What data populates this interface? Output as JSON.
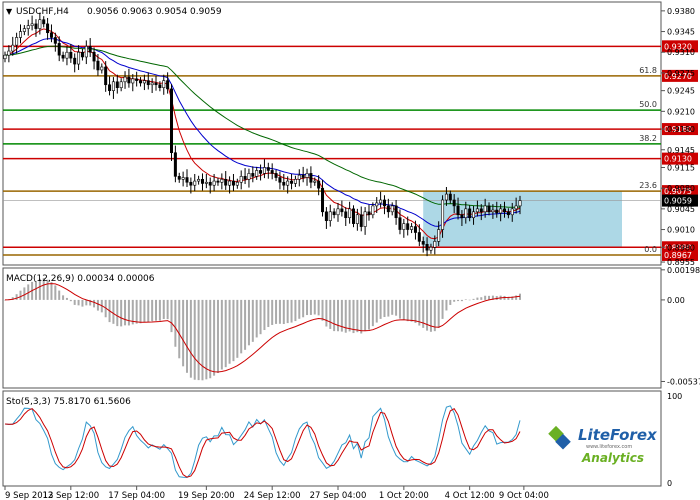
{
  "chart_data": [
    {
      "type": "candlestick",
      "symbol_label": "USDCHF,H4",
      "ohlc_label": "0.9056 0.9063 0.9054 0.9059",
      "ylim": [
        0.895,
        0.9395
      ],
      "yticks": [
        "0.9380",
        "0.9345",
        "0.9310",
        "0.9275",
        "0.9245",
        "0.9210",
        "0.9180",
        "0.9145",
        "0.9115",
        "0.9080",
        "0.9045",
        "0.9010",
        "0.8980",
        "0.8955"
      ],
      "xtick_labels": [
        "9 Sep 2013",
        "12 Sep 12:00",
        "17 Sep 04:00",
        "19 Sep 20:00",
        "24 Sep 12:00",
        "27 Sep 04:00",
        "1 Oct 20:00",
        "4 Oct 12:00",
        "9 Oct 04:00"
      ],
      "n_bars": 134,
      "close": [
        0.9305,
        0.9312,
        0.9322,
        0.9335,
        0.9345,
        0.935,
        0.9355,
        0.9358,
        0.935,
        0.9365,
        0.9358,
        0.9343,
        0.9335,
        0.9325,
        0.9305,
        0.93,
        0.931,
        0.93,
        0.929,
        0.931,
        0.9302,
        0.932,
        0.931,
        0.9295,
        0.928,
        0.9285,
        0.9255,
        0.9245,
        0.926,
        0.925,
        0.926,
        0.9268,
        0.9258,
        0.9265,
        0.9262,
        0.9258,
        0.9262,
        0.9255,
        0.9258,
        0.9255,
        0.925,
        0.9262,
        0.9248,
        0.914,
        0.91,
        0.9095,
        0.9098,
        0.909,
        0.9085,
        0.9092,
        0.9095,
        0.9088,
        0.909,
        0.9085,
        0.9092,
        0.909,
        0.9095,
        0.9085,
        0.9092,
        0.9085,
        0.909,
        0.91,
        0.9095,
        0.9105,
        0.91,
        0.911,
        0.9105,
        0.9115,
        0.911,
        0.9105,
        0.9098,
        0.909,
        0.9085,
        0.9092,
        0.9088,
        0.9095,
        0.9102,
        0.9098,
        0.9105,
        0.909,
        0.9092,
        0.908,
        0.904,
        0.9025,
        0.904,
        0.9035,
        0.9045,
        0.904,
        0.903,
        0.9045,
        0.902,
        0.9035,
        0.9015,
        0.904,
        0.9035,
        0.905,
        0.9055,
        0.906,
        0.905,
        0.904,
        0.905,
        0.903,
        0.901,
        0.902,
        0.901,
        0.9015,
        0.9005,
        0.899,
        0.8985,
        0.8975,
        0.898,
        0.899,
        0.901,
        0.906,
        0.907,
        0.906,
        0.905,
        0.9035,
        0.903,
        0.9045,
        0.903,
        0.904,
        0.9045,
        0.904,
        0.905,
        0.904,
        0.9043,
        0.9038,
        0.9045,
        0.904,
        0.9035,
        0.9045,
        0.905,
        0.9059
      ],
      "indicators": [
        {
          "name": "EMA fast",
          "color": "#cc0000"
        },
        {
          "name": "EMA mid",
          "color": "#0000cc"
        },
        {
          "name": "EMA slow",
          "color": "#006600"
        }
      ],
      "levels": [
        {
          "label": "0.9320",
          "fib": "",
          "color": "#cc0000",
          "value": 0.932
        },
        {
          "label": "0.9270",
          "fib": "61.8",
          "color": "#996600",
          "value": 0.927
        },
        {
          "label": "",
          "fib": "50.0",
          "color": "#008800",
          "value": 0.9212
        },
        {
          "label": "0.9180",
          "fib": "",
          "color": "#cc0000",
          "value": 0.918
        },
        {
          "label": "",
          "fib": "38.2",
          "color": "#008800",
          "value": 0.9155
        },
        {
          "label": "0.9130",
          "fib": "",
          "color": "#cc0000",
          "value": 0.913
        },
        {
          "label": "0.9075",
          "fib": "23.6",
          "color": "#996600",
          "value": 0.9075
        },
        {
          "label": "0.8980",
          "fib": "",
          "color": "#cc0000",
          "value": 0.898
        },
        {
          "label": "0.8967",
          "fib": "0.0",
          "color": "#996600",
          "value": 0.8967
        }
      ],
      "price_badge": {
        "label": "0.9059",
        "value": 0.9059
      },
      "highlight_box": {
        "y_high": 0.9075,
        "y_low": 0.898,
        "color": "#add8e6"
      }
    },
    {
      "type": "bar",
      "title": "MACD(12,26,9) 0.00034 0.00006",
      "yticks": [
        "0.00198",
        "0.00",
        "-0.00537"
      ],
      "ylim": [
        -0.0058,
        0.0021
      ],
      "signal_color": "#cc0000",
      "hist_color": "#aaaaaa"
    },
    {
      "type": "line",
      "title": "Sto(5,3,3) 75.8170 61.5606",
      "yticks": [
        "100",
        "0"
      ],
      "ylim": [
        0,
        100
      ],
      "series": [
        {
          "color": "#3399cc"
        },
        {
          "color": "#cc0000"
        }
      ]
    }
  ],
  "logo": {
    "text": "LiteForex",
    "sub": "Analytics",
    "tagline": "www.liteforex.com",
    "colors": {
      "green": "#6ab023",
      "blue": "#1f5fa8"
    }
  }
}
